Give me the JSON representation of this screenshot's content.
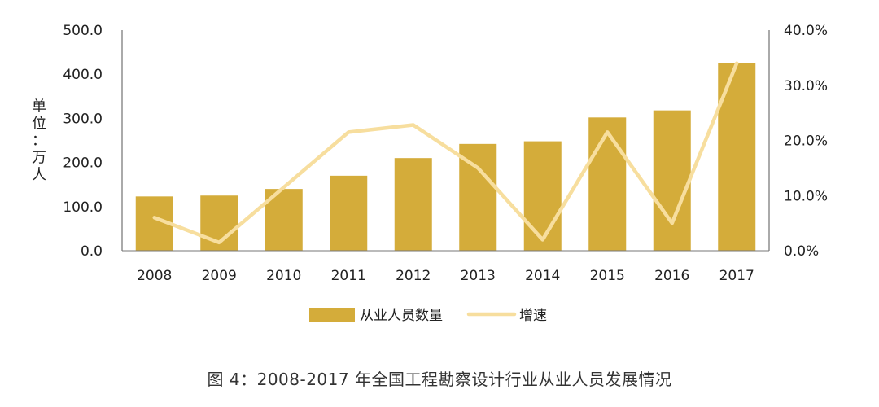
{
  "chart_data": {
    "type": "bar",
    "categories": [
      "2008",
      "2009",
      "2010",
      "2011",
      "2012",
      "2013",
      "2014",
      "2015",
      "2016",
      "2017"
    ],
    "series": [
      {
        "name": "从业人员数量",
        "type": "bar",
        "axis": "left",
        "color": "#D4AC3A",
        "values": [
          123,
          125,
          140,
          170,
          210,
          242,
          248,
          302,
          318,
          425
        ]
      },
      {
        "name": "增速",
        "type": "line",
        "axis": "right",
        "color": "#F7DE9E",
        "values": [
          6.0,
          1.5,
          11.5,
          21.5,
          22.8,
          15.0,
          2.0,
          21.5,
          5.0,
          34.0
        ]
      }
    ],
    "ylabel": "单位：万人",
    "ylim": [
      0,
      500
    ],
    "yticks": [
      "0.0",
      "100.0",
      "200.0",
      "300.0",
      "400.0",
      "500.0"
    ],
    "y2lim": [
      0,
      40
    ],
    "y2ticks": [
      "0.0%",
      "10.0%",
      "20.0%",
      "30.0%",
      "40.0%"
    ],
    "legend_position": "bottom"
  },
  "caption": "图 4：2008-2017 年全国工程勘察设计行业从业人员发展情况"
}
